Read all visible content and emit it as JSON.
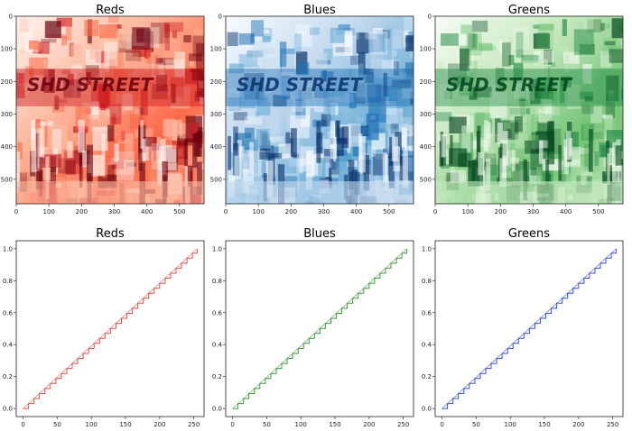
{
  "colors": {
    "reds": "#d62728",
    "blues": "#1f5fa8",
    "greens": "#2e8b3a",
    "red_line": "#e0524a",
    "green_line": "#3f9a3f",
    "blue_line": "#3a50d8"
  },
  "images": [
    {
      "title": "Reds",
      "colormap": "Reds",
      "xticks": [
        0,
        100,
        200,
        300,
        400,
        500
      ],
      "yticks": [
        0,
        100,
        200,
        300,
        400,
        500
      ],
      "xlim": [
        0,
        575
      ],
      "ylim": [
        575,
        0
      ],
      "overlay_text": "SHD STREET"
    },
    {
      "title": "Blues",
      "colormap": "Blues",
      "xticks": [
        0,
        100,
        200,
        300,
        400,
        500
      ],
      "yticks": [
        0,
        100,
        200,
        300,
        400,
        500
      ],
      "xlim": [
        0,
        575
      ],
      "ylim": [
        575,
        0
      ],
      "overlay_text": "SHD STREET"
    },
    {
      "title": "Greens",
      "colormap": "Greens",
      "xticks": [
        0,
        100,
        200,
        300,
        400,
        500
      ],
      "yticks": [
        0,
        100,
        200,
        300,
        400,
        500
      ],
      "xlim": [
        0,
        575
      ],
      "ylim": [
        575,
        0
      ],
      "overlay_text": "SHD STREET"
    }
  ],
  "chart_data": [
    {
      "type": "line",
      "title": "Reds",
      "x": [
        0,
        255
      ],
      "series": [
        {
          "values": [
            0.0,
            1.0
          ],
          "style": "staircase"
        }
      ],
      "xlim": [
        -10,
        265
      ],
      "ylim": [
        -0.05,
        1.05
      ],
      "xticks": [
        0,
        50,
        100,
        150,
        200,
        250
      ],
      "yticks": [
        0.0,
        0.2,
        0.4,
        0.6,
        0.8,
        1.0
      ],
      "line_color": "#e0524a"
    },
    {
      "type": "line",
      "title": "Blues",
      "x": [
        0,
        255
      ],
      "series": [
        {
          "values": [
            0.0,
            1.0
          ],
          "style": "staircase"
        }
      ],
      "xlim": [
        -10,
        265
      ],
      "ylim": [
        -0.05,
        1.05
      ],
      "xticks": [
        0,
        50,
        100,
        150,
        200,
        250
      ],
      "yticks": [
        0.0,
        0.2,
        0.4,
        0.6,
        0.8,
        1.0
      ],
      "line_color": "#3f9a3f"
    },
    {
      "type": "line",
      "title": "Greens",
      "x": [
        0,
        255
      ],
      "series": [
        {
          "values": [
            0.0,
            1.0
          ],
          "style": "staircase"
        }
      ],
      "xlim": [
        -10,
        265
      ],
      "ylim": [
        -0.05,
        1.05
      ],
      "xticks": [
        0,
        50,
        100,
        150,
        200,
        250
      ],
      "yticks": [
        0.0,
        0.2,
        0.4,
        0.6,
        0.8,
        1.0
      ],
      "line_color": "#3a50d8"
    }
  ]
}
